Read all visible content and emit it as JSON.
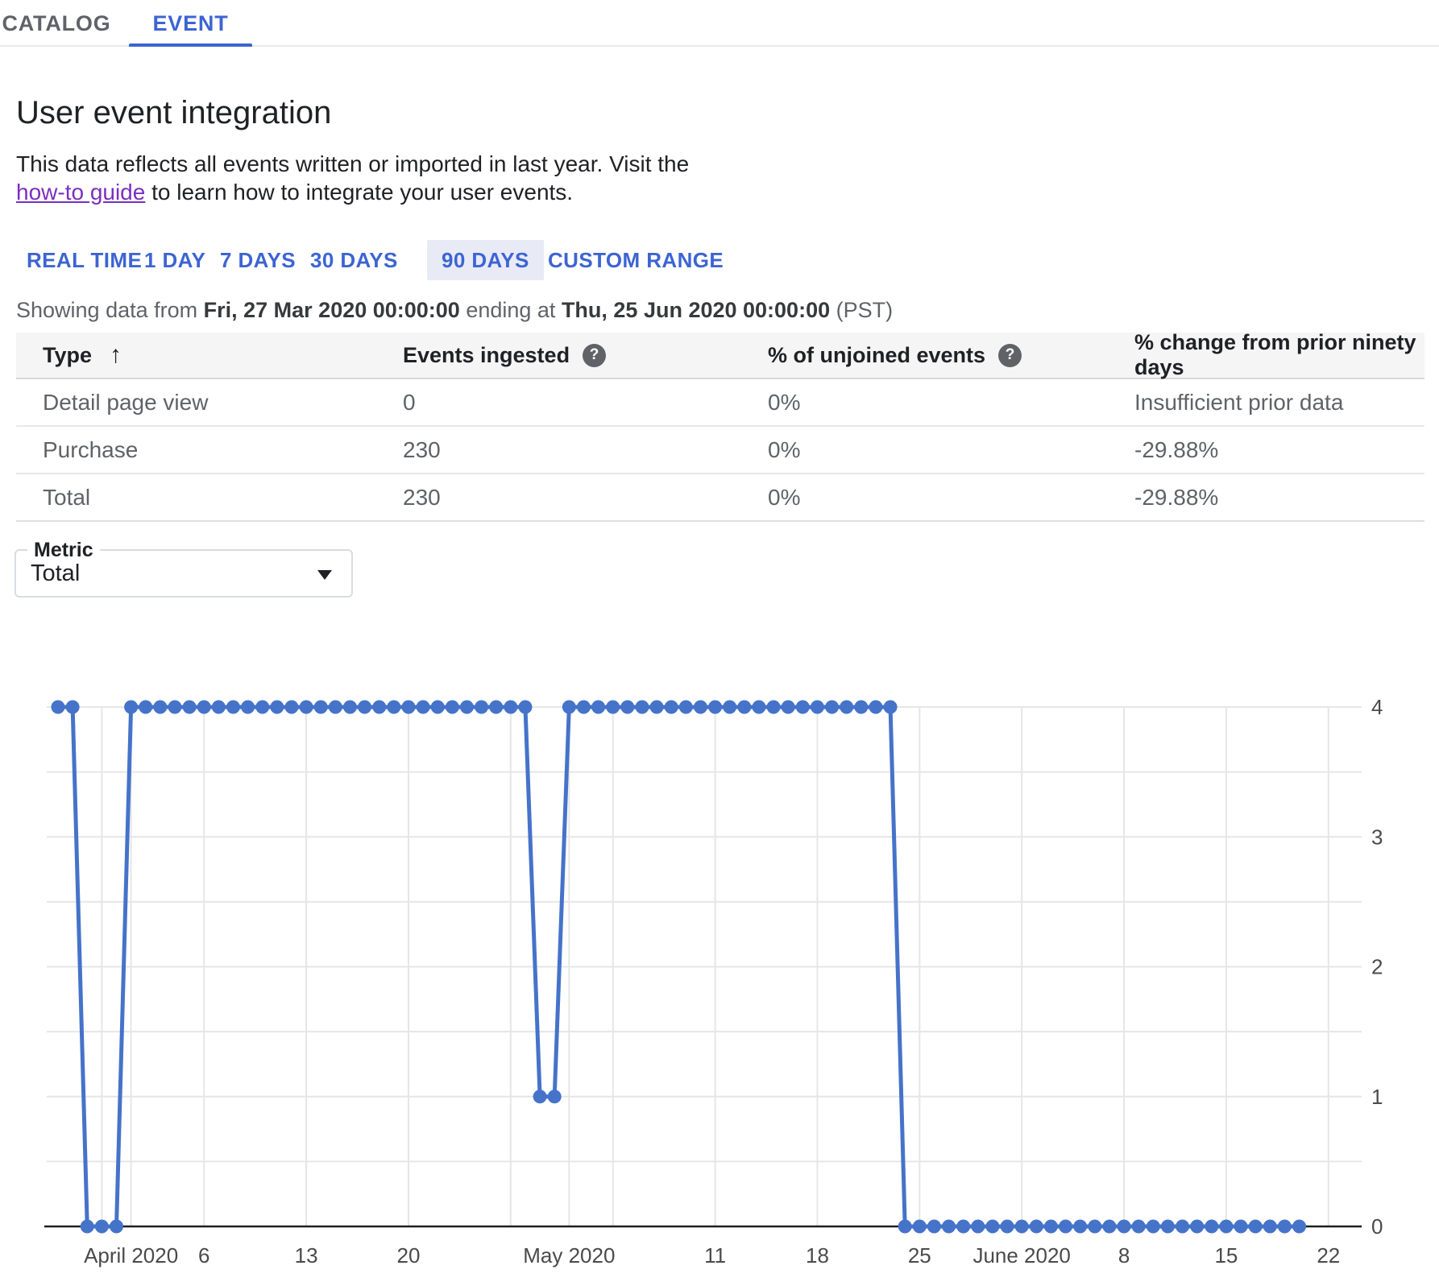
{
  "header_tabs": {
    "catalog": "CATALOG",
    "event": "EVENT"
  },
  "page": {
    "title": "User event integration",
    "description": {
      "before_link": "This data reflects all events written or imported in last year. Visit the ",
      "link": "how-to guide",
      "after_link": " to learn how to integrate your user events."
    }
  },
  "range_tabs": [
    {
      "label": "REAL TIME",
      "selected": false
    },
    {
      "label": "1 DAY",
      "selected": false
    },
    {
      "label": "7 DAYS",
      "selected": false
    },
    {
      "label": "30 DAYS",
      "selected": false
    },
    {
      "label": "90 DAYS",
      "selected": true
    },
    {
      "label": "CUSTOM RANGE",
      "selected": false
    }
  ],
  "date_range": {
    "prefix": "Showing data from ",
    "start": "Fri, 27 Mar 2020 00:00:00",
    "middle": " ending at ",
    "end": "Thu, 25 Jun 2020 00:00:00",
    "suffix": " (PST)"
  },
  "table": {
    "headers": [
      "Type",
      "Events ingested",
      "% of unjoined events",
      "% change from prior ninety days"
    ],
    "rows": [
      {
        "type": "Detail page view",
        "events_ingested": "0",
        "pct_unjoined": "0%",
        "pct_change": "Insufficient prior data"
      },
      {
        "type": "Purchase",
        "events_ingested": "230",
        "pct_unjoined": "0%",
        "pct_change": "-29.88%"
      },
      {
        "type": "Total",
        "events_ingested": "230",
        "pct_unjoined": "0%",
        "pct_change": "-29.88%"
      }
    ]
  },
  "metric_field": {
    "label": "Metric",
    "value": "Total"
  },
  "colors": {
    "accent_blue": "#3d64d2",
    "chart_line": "#4573c9",
    "link_purple": "#7b2fc0",
    "selected_range_bg": "#e8eaf6",
    "gridline": "#e6e6e6",
    "axis": "#1f1f1f"
  },
  "chart_data": {
    "type": "line",
    "title": "",
    "x_start_date": "2020-03-27",
    "x_end_date": "2020-06-24",
    "xlabel": "",
    "ylabel": "",
    "ylim": [
      0,
      4
    ],
    "y_ticks": [
      0,
      1,
      2,
      3,
      4
    ],
    "y_minor_gridline_step": 0.5,
    "legend": "none",
    "grid": true,
    "series": [
      {
        "name": "Total",
        "values": [
          4,
          4,
          0,
          0,
          0,
          4,
          4,
          4,
          4,
          4,
          4,
          4,
          4,
          4,
          4,
          4,
          4,
          4,
          4,
          4,
          4,
          4,
          4,
          4,
          4,
          4,
          4,
          4,
          4,
          4,
          4,
          4,
          4,
          1,
          1,
          4,
          4,
          4,
          4,
          4,
          4,
          4,
          4,
          4,
          4,
          4,
          4,
          4,
          4,
          4,
          4,
          4,
          4,
          4,
          4,
          4,
          4,
          4,
          0,
          0,
          0,
          0,
          0,
          0,
          0,
          0,
          0,
          0,
          0,
          0,
          0,
          0,
          0,
          0,
          0,
          0,
          0,
          0,
          0,
          0,
          0,
          0,
          0,
          0,
          0,
          0
        ]
      }
    ],
    "x_gridlines": [
      {
        "day_index": 3,
        "label": ""
      },
      {
        "day_index": 5,
        "label": "April 2020"
      },
      {
        "day_index": 10,
        "label": "6"
      },
      {
        "day_index": 17,
        "label": "13"
      },
      {
        "day_index": 24,
        "label": "20"
      },
      {
        "day_index": 31,
        "label": ""
      },
      {
        "day_index": 35,
        "label": "May 2020"
      },
      {
        "day_index": 38,
        "label": ""
      },
      {
        "day_index": 45,
        "label": "11"
      },
      {
        "day_index": 52,
        "label": "18"
      },
      {
        "day_index": 59,
        "label": "25"
      },
      {
        "day_index": 66,
        "label": "June 2020"
      },
      {
        "day_index": 73,
        "label": "8"
      },
      {
        "day_index": 80,
        "label": "15"
      },
      {
        "day_index": 87,
        "label": "22"
      }
    ]
  }
}
